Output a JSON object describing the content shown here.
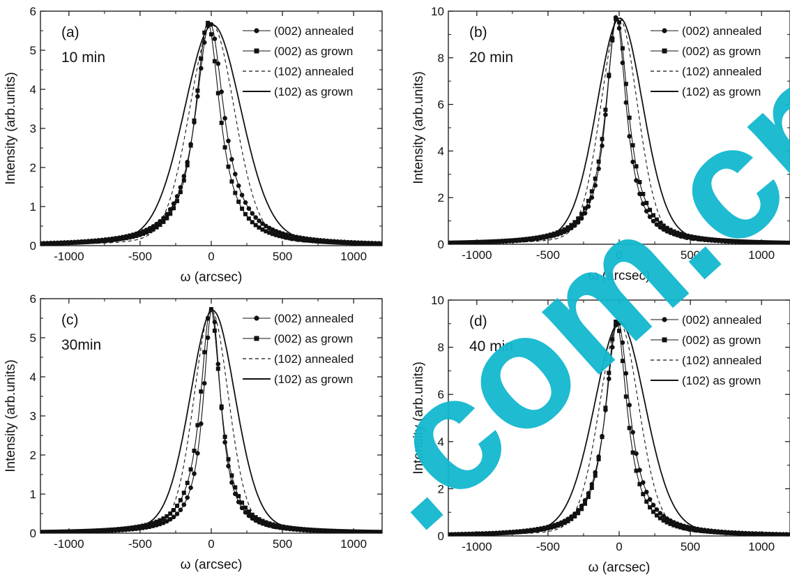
{
  "watermark": {
    "text": ".com.cn",
    "color": "#12b8cf"
  },
  "colors": {
    "line": "#111111",
    "background": "#ffffff"
  },
  "chart_data": [
    {
      "type": "line",
      "panel_label": "(a)",
      "time_label": "10 min",
      "xlabel": "ω (arcsec)",
      "ylabel": "Intensity (arb.units)",
      "xlim": [
        -1200,
        1200
      ],
      "ylim": [
        0,
        6
      ],
      "xticks": [
        -1000,
        -500,
        0,
        500,
        1000
      ],
      "yticks": [
        0,
        1,
        2,
        3,
        4,
        5,
        6
      ],
      "legend_position": "top-right",
      "series": [
        {
          "name": "(002) annealed",
          "style": "line-circle",
          "peak": 5.7,
          "center": -10,
          "fwhm": 245,
          "shape": "lorentz"
        },
        {
          "name": "(002) as grown",
          "style": "line-square",
          "peak": 5.7,
          "center": -25,
          "fwhm": 215,
          "shape": "lorentz"
        },
        {
          "name": "(102) annealed",
          "style": "dashed",
          "peak": 5.65,
          "center": 5,
          "fwhm": 380,
          "shape": "pv"
        },
        {
          "name": "(102) as grown",
          "style": "solid",
          "peak": 5.65,
          "center": 10,
          "fwhm": 480,
          "shape": "pv"
        }
      ]
    },
    {
      "type": "line",
      "panel_label": "(b)",
      "time_label": "20 min",
      "xlabel": "ω (arcsec)",
      "ylabel": "Intensity (arb.units)",
      "xlim": [
        -1200,
        1200
      ],
      "ylim": [
        0,
        10
      ],
      "xticks": [
        -1000,
        -500,
        0,
        500,
        1000
      ],
      "yticks": [
        0,
        2,
        4,
        6,
        8,
        10
      ],
      "legend_position": "top-right",
      "series": [
        {
          "name": "(002) annealed",
          "style": "line-circle",
          "peak": 9.75,
          "center": -20,
          "fwhm": 175,
          "shape": "lorentz"
        },
        {
          "name": "(002) as grown",
          "style": "line-square",
          "peak": 9.75,
          "center": -15,
          "fwhm": 195,
          "shape": "lorentz"
        },
        {
          "name": "(102) annealed",
          "style": "dashed",
          "peak": 9.7,
          "center": 0,
          "fwhm": 310,
          "shape": "pv"
        },
        {
          "name": "(102) as grown",
          "style": "solid",
          "peak": 9.7,
          "center": 5,
          "fwhm": 390,
          "shape": "pv"
        }
      ]
    },
    {
      "type": "line",
      "panel_label": "(c)",
      "time_label": "30min",
      "xlabel": "ω (arcsec)",
      "ylabel": "Intensity (arb.units)",
      "xlim": [
        -1200,
        1200
      ],
      "ylim": [
        0,
        6
      ],
      "xticks": [
        -1000,
        -500,
        0,
        500,
        1000
      ],
      "yticks": [
        0,
        1,
        2,
        3,
        4,
        5,
        6
      ],
      "legend_position": "top-right",
      "series": [
        {
          "name": "(002) annealed",
          "style": "line-circle",
          "peak": 5.75,
          "center": 5,
          "fwhm": 150,
          "shape": "lorentz"
        },
        {
          "name": "(002) as grown",
          "style": "line-square",
          "peak": 5.75,
          "center": -5,
          "fwhm": 175,
          "shape": "lorentz"
        },
        {
          "name": "(102) annealed",
          "style": "dashed",
          "peak": 5.7,
          "center": 0,
          "fwhm": 290,
          "shape": "pv"
        },
        {
          "name": "(102) as grown",
          "style": "solid",
          "peak": 5.7,
          "center": 10,
          "fwhm": 380,
          "shape": "pv"
        }
      ]
    },
    {
      "type": "line",
      "panel_label": "(d)",
      "time_label": "40 min",
      "xlabel": "ω (arcsec)",
      "ylabel": "Intensity (arb.units)",
      "xlim": [
        -1200,
        1200
      ],
      "ylim": [
        0,
        10
      ],
      "xticks": [
        -1000,
        -500,
        0,
        500,
        1000
      ],
      "yticks": [
        0,
        2,
        4,
        6,
        8,
        10
      ],
      "legend_position": "top-right",
      "series": [
        {
          "name": "(002) annealed",
          "style": "line-circle",
          "peak": 9.1,
          "center": -10,
          "fwhm": 205,
          "shape": "lorentz"
        },
        {
          "name": "(002) as grown",
          "style": "line-square",
          "peak": 9.1,
          "center": -20,
          "fwhm": 185,
          "shape": "lorentz"
        },
        {
          "name": "(102) annealed",
          "style": "dashed",
          "peak": 9.05,
          "center": 0,
          "fwhm": 330,
          "shape": "pv"
        },
        {
          "name": "(102) as grown",
          "style": "solid",
          "peak": 9.05,
          "center": 5,
          "fwhm": 430,
          "shape": "pv"
        }
      ]
    }
  ]
}
